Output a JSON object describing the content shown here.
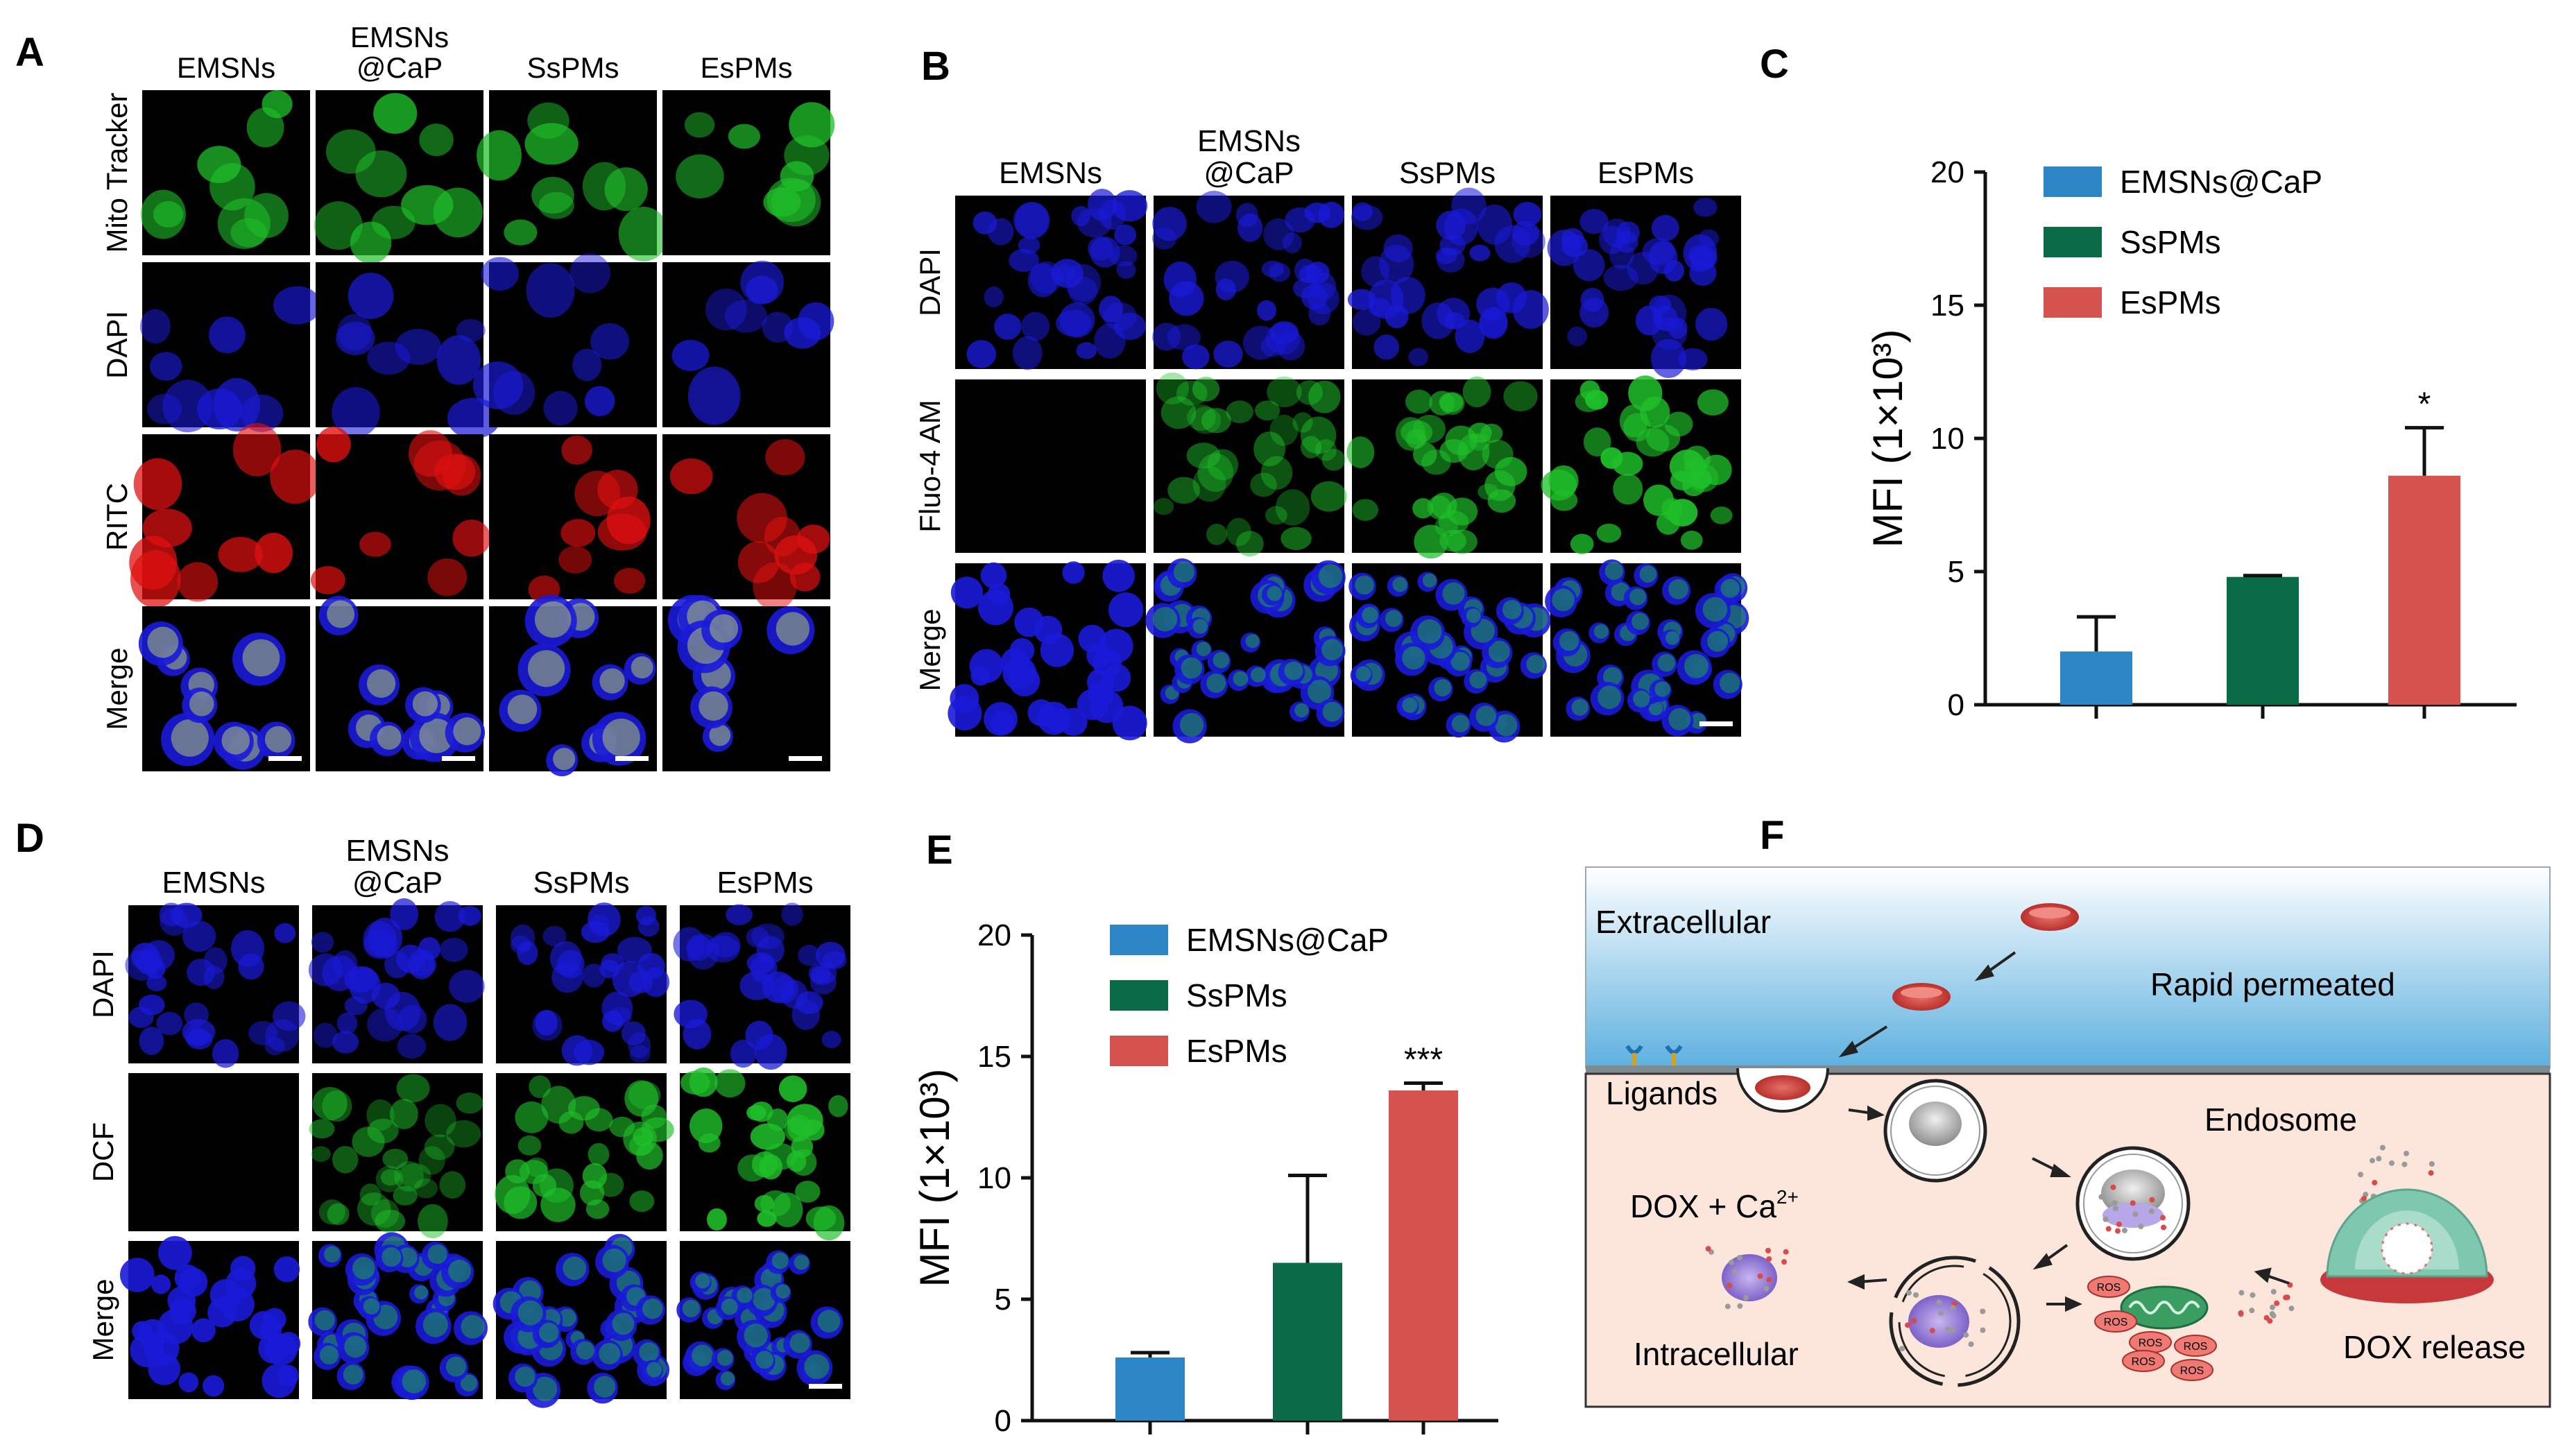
{
  "panel_letters": [
    "A",
    "B",
    "C",
    "D",
    "E",
    "F"
  ],
  "panel_a": {
    "columns": [
      "EMSNs",
      "EMSNs\n@CaP",
      "SsPMs",
      "EsPMs"
    ],
    "rows": [
      "Mito Tracker",
      "DAPI",
      "RITC",
      "Merge"
    ]
  },
  "panel_b": {
    "columns": [
      "EMSNs",
      "EMSNs\n@CaP",
      "SsPMs",
      "EsPMs"
    ],
    "rows": [
      "DAPI",
      "Fluo-4 AM",
      "Merge"
    ]
  },
  "panel_d": {
    "columns": [
      "EMSNs",
      "EMSNs\n@CaP",
      "SsPMs",
      "EsPMs"
    ],
    "rows": [
      "DAPI",
      "DCF",
      "Merge"
    ]
  },
  "colors": {
    "blue_bar": "#2c86c6",
    "green_bar": "#0b6b47",
    "red_bar": "#d6524f",
    "mito_green": "#1fbf2a",
    "dapi_blue": "#1a1ad8",
    "ritc_red": "#e01010",
    "extracellular_top": "#ffffff",
    "extracellular_bottom": "#5db0df",
    "intracellular_bg": "#fce6dc"
  },
  "chart_data": [
    {
      "panel": "C",
      "type": "bar",
      "categories": [
        "EMSNs@CaP",
        "SsPMs",
        "EsPMs"
      ],
      "values": [
        2.0,
        4.8,
        8.6
      ],
      "errors": [
        1.3,
        0.05,
        1.8
      ],
      "significance": [
        "",
        "",
        "*"
      ],
      "ylabel": "MFI (1×10³)",
      "ylim": [
        0,
        20
      ],
      "yticks": [
        0,
        5,
        10,
        15,
        20
      ],
      "legend": [
        "EMSNs@CaP",
        "SsPMs",
        "EsPMs"
      ],
      "legend_position": "top-left",
      "grid": false
    },
    {
      "panel": "E",
      "type": "bar",
      "categories": [
        "EMSNs@CaP",
        "SsPMs",
        "EsPMs"
      ],
      "values": [
        2.6,
        6.5,
        13.6
      ],
      "errors": [
        0.2,
        3.6,
        0.3
      ],
      "significance": [
        "",
        "",
        "***"
      ],
      "ylabel": "MFI (1×10³)",
      "ylim": [
        0,
        20
      ],
      "yticks": [
        0,
        5,
        10,
        15,
        20
      ],
      "legend": [
        "EMSNs@CaP",
        "SsPMs",
        "EsPMs"
      ],
      "legend_position": "top-left",
      "grid": false
    }
  ],
  "panel_f": {
    "extracellular": "Extracellular",
    "rapid": "Rapid permeated",
    "ligands": "Ligands",
    "endosome": "Endosome",
    "dox_ca": "DOX + Ca",
    "dox_ca_sup": "2+",
    "intracellular": "Intracellular",
    "dox_release": "DOX release",
    "ros": "ROS"
  }
}
